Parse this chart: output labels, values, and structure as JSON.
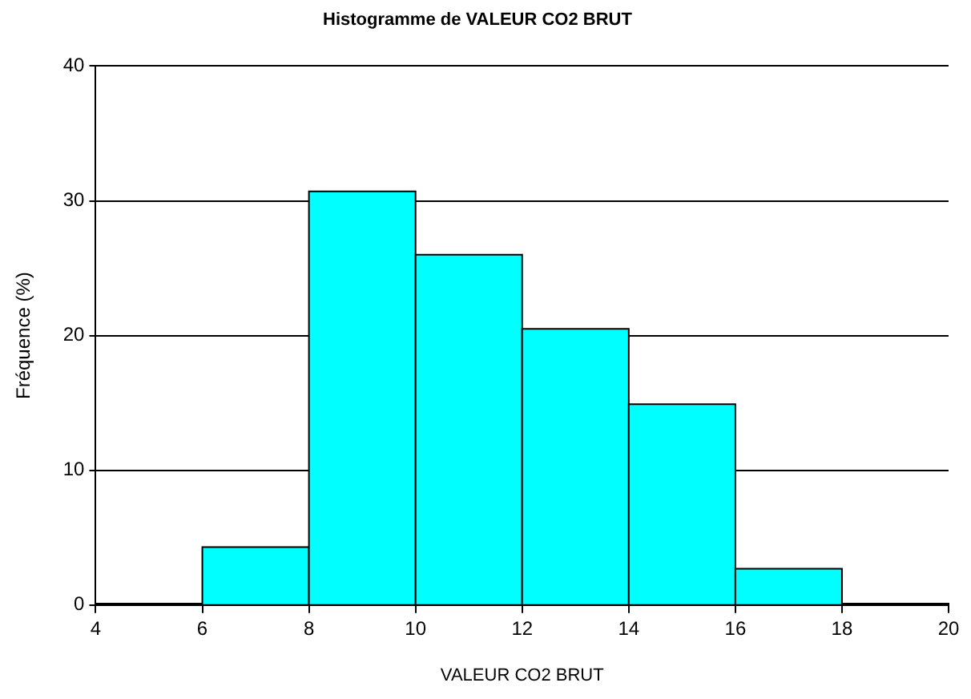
{
  "chart_data": {
    "type": "histogram",
    "title": "Histogramme de VALEUR CO2 BRUT",
    "xlabel": "VALEUR CO2 BRUT",
    "ylabel": "Fréquence (%)",
    "bins": [
      4,
      6,
      8,
      10,
      12,
      14,
      16,
      18,
      20
    ],
    "values": [
      0.1,
      4.3,
      30.7,
      26.0,
      20.5,
      14.9,
      2.7,
      0.1
    ],
    "color": "#00ffff",
    "xlim": [
      4,
      20
    ],
    "xticks": [
      4,
      6,
      8,
      10,
      12,
      14,
      16,
      18,
      20
    ],
    "ylim": [
      0,
      40
    ],
    "yticks": [
      0,
      10,
      20,
      30,
      40
    ],
    "grid": "y"
  }
}
